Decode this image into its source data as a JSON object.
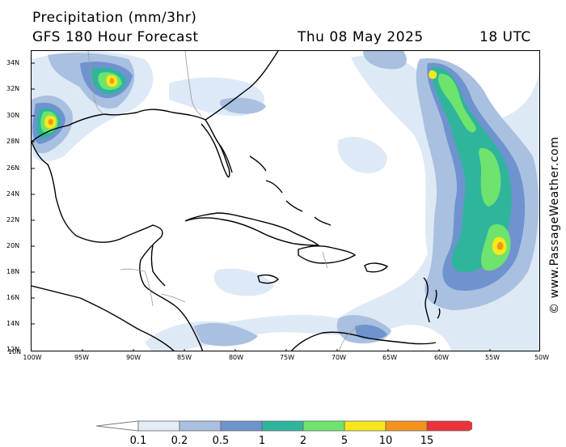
{
  "header": {
    "title": "Precipitation (mm/3hr)",
    "subtitle": "GFS 180 Hour Forecast",
    "date": "Thu 08 May 2025",
    "time": "18 UTC"
  },
  "map": {
    "lat_labels": [
      "34N",
      "32N",
      "30N",
      "28N",
      "26N",
      "24N",
      "22N",
      "20N",
      "18N",
      "16N",
      "14N",
      "12N",
      "10N"
    ],
    "lon_labels": [
      "100W",
      "95W",
      "90W",
      "85W",
      "80W",
      "75W",
      "70W",
      "65W",
      "60W",
      "55W",
      "50W"
    ]
  },
  "credit": "© www.PassageWeather.com",
  "legend": {
    "labels": [
      "0.1",
      "0.2",
      "0.5",
      "1",
      "2",
      "5",
      "10",
      "15"
    ],
    "colors": [
      "#ffffff",
      "#e4ecf6",
      "#a9c0e0",
      "#6f93cf",
      "#2fb59c",
      "#6ee36e",
      "#f6e81a",
      "#f3931e",
      "#e8343a"
    ]
  },
  "colors": {
    "light": "#dce8f6",
    "lightblue": "#a9c0e0",
    "blue": "#6f93cf",
    "teal": "#2fb59c",
    "green": "#6ee36e",
    "yellow": "#f6e81a",
    "orange": "#f3931e",
    "red": "#e8343a"
  }
}
